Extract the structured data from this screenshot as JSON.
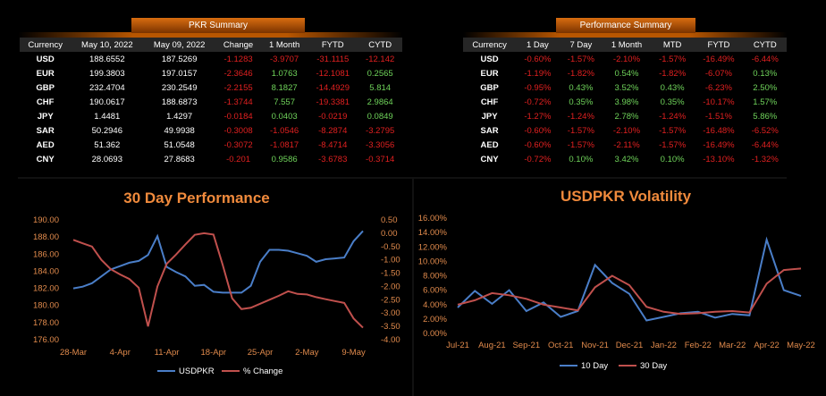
{
  "pkr_summary": {
    "title": "PKR Summary",
    "headers": [
      "Currency",
      "May 10, 2022",
      "May 09, 2022",
      "Change",
      "1 Month",
      "FYTD",
      "CYTD"
    ],
    "rows": [
      [
        "USD",
        "188.6552",
        "187.5269",
        "-1.1283",
        "-3.9707",
        "-31.1115",
        "-12.142"
      ],
      [
        "EUR",
        "199.3803",
        "197.0157",
        "-2.3646",
        "1.0763",
        "-12.1081",
        "0.2565"
      ],
      [
        "GBP",
        "232.4704",
        "230.2549",
        "-2.2155",
        "8.1827",
        "-14.4929",
        "5.814"
      ],
      [
        "CHF",
        "190.0617",
        "188.6873",
        "-1.3744",
        "7.557",
        "-19.3381",
        "2.9864"
      ],
      [
        "JPY",
        "1.4481",
        "1.4297",
        "-0.0184",
        "0.0403",
        "-0.0219",
        "0.0849"
      ],
      [
        "SAR",
        "50.2946",
        "49.9938",
        "-0.3008",
        "-1.0546",
        "-8.2874",
        "-3.2795"
      ],
      [
        "AED",
        "51.362",
        "51.0548",
        "-0.3072",
        "-1.0817",
        "-8.4714",
        "-3.3056"
      ],
      [
        "CNY",
        "28.0693",
        "27.8683",
        "-0.201",
        "0.9586",
        "-3.6783",
        "-0.3714"
      ]
    ]
  },
  "performance_summary": {
    "title": "Performance Summary",
    "headers": [
      "Currency",
      "1 Day",
      "7 Day",
      "1 Month",
      "MTD",
      "FYTD",
      "CYTD"
    ],
    "rows": [
      [
        "USD",
        "-0.60%",
        "-1.57%",
        "-2.10%",
        "-1.57%",
        "-16.49%",
        "-6.44%"
      ],
      [
        "EUR",
        "-1.19%",
        "-1.82%",
        "0.54%",
        "-1.82%",
        "-6.07%",
        "0.13%"
      ],
      [
        "GBP",
        "-0.95%",
        "0.43%",
        "3.52%",
        "0.43%",
        "-6.23%",
        "2.50%"
      ],
      [
        "CHF",
        "-0.72%",
        "0.35%",
        "3.98%",
        "0.35%",
        "-10.17%",
        "1.57%"
      ],
      [
        "JPY",
        "-1.27%",
        "-1.24%",
        "2.78%",
        "-1.24%",
        "-1.51%",
        "5.86%"
      ],
      [
        "SAR",
        "-0.60%",
        "-1.57%",
        "-2.10%",
        "-1.57%",
        "-16.48%",
        "-6.52%"
      ],
      [
        "AED",
        "-0.60%",
        "-1.57%",
        "-2.11%",
        "-1.57%",
        "-16.49%",
        "-6.44%"
      ],
      [
        "CNY",
        "-0.72%",
        "0.10%",
        "3.42%",
        "0.10%",
        "-13.10%",
        "-1.32%"
      ]
    ]
  },
  "colors": {
    "positive": "#6fd35a",
    "negative": "#e02020",
    "accent": "#f08a3c",
    "series_blue": "#4a7ec8",
    "series_red": "#c0504d"
  },
  "chart_data": [
    {
      "type": "line",
      "title": "30 Day Performance",
      "x_tick_labels": [
        "28-Mar",
        "4-Apr",
        "11-Apr",
        "18-Apr",
        "25-Apr",
        "2-May",
        "9-May"
      ],
      "x": [
        "28-Mar",
        "29-Mar",
        "30-Mar",
        "31-Mar",
        "1-Apr",
        "4-Apr",
        "5-Apr",
        "6-Apr",
        "7-Apr",
        "8-Apr",
        "11-Apr",
        "12-Apr",
        "13-Apr",
        "14-Apr",
        "15-Apr",
        "18-Apr",
        "19-Apr",
        "20-Apr",
        "21-Apr",
        "22-Apr",
        "25-Apr",
        "26-Apr",
        "27-Apr",
        "28-Apr",
        "29-Apr",
        "2-May",
        "3-May",
        "4-May",
        "5-May",
        "6-May",
        "9-May",
        "10-May"
      ],
      "y_left_ticks": [
        "176.00",
        "178.00",
        "180.00",
        "182.00",
        "184.00",
        "186.00",
        "188.00",
        "190.00"
      ],
      "y_right_ticks": [
        "-4.00",
        "-3.50",
        "-3.00",
        "-2.50",
        "-2.00",
        "-1.50",
        "-1.00",
        "-0.50",
        "0.00",
        "0.50"
      ],
      "ylim_left": [
        176,
        190
      ],
      "ylim_right": [
        -4.0,
        0.5
      ],
      "series": [
        {
          "name": "USDPKR",
          "axis": "left",
          "values": [
            182.0,
            182.2,
            182.6,
            183.4,
            184.2,
            184.6,
            185.0,
            185.2,
            185.9,
            188.1,
            184.5,
            183.9,
            183.4,
            182.3,
            182.4,
            181.6,
            181.5,
            181.5,
            181.5,
            182.3,
            185.1,
            186.5,
            186.5,
            186.4,
            186.1,
            185.8,
            185.1,
            185.4,
            185.5,
            185.6,
            187.5,
            188.7
          ]
        },
        {
          "name": "% Change",
          "axis": "right",
          "values": [
            -0.25,
            -0.38,
            -0.5,
            -1.0,
            -1.35,
            -1.55,
            -1.72,
            -2.05,
            -3.5,
            -2.0,
            -1.15,
            -0.8,
            -0.42,
            -0.06,
            0.0,
            -0.05,
            -1.2,
            -2.45,
            -2.85,
            -2.8,
            -2.65,
            -2.5,
            -2.35,
            -2.18,
            -2.28,
            -2.3,
            -2.4,
            -2.48,
            -2.55,
            -2.62,
            -3.2,
            -3.55
          ]
        }
      ],
      "legend_position": "bottom"
    },
    {
      "type": "line",
      "title": "USDPKR Volatility",
      "x_tick_labels": [
        "Jul-21",
        "Aug-21",
        "Sep-21",
        "Oct-21",
        "Nov-21",
        "Dec-21",
        "Jan-22",
        "Feb-22",
        "Mar-22",
        "Apr-22",
        "May-22"
      ],
      "y_ticks": [
        "0.00%",
        "2.00%",
        "4.00%",
        "6.00%",
        "8.00%",
        "10.00%",
        "12.00%",
        "14.00%",
        "16.00%"
      ],
      "ylim": [
        0,
        16
      ],
      "x": [
        "Jul-21",
        "Jul-21",
        "Aug-21",
        "Aug-21",
        "Sep-21",
        "Sep-21",
        "Oct-21",
        "Oct-21",
        "Nov-21",
        "Nov-21",
        "Dec-21",
        "Dec-21",
        "Jan-22",
        "Jan-22",
        "Feb-22",
        "Feb-22",
        "Mar-22",
        "Mar-22",
        "Apr-22",
        "Apr-22",
        "May-22"
      ],
      "series": [
        {
          "name": "10 Day",
          "values": [
            3.6,
            5.9,
            4.1,
            6.0,
            3.1,
            4.3,
            2.3,
            3.1,
            9.5,
            7.0,
            5.5,
            1.8,
            2.3,
            2.8,
            3.0,
            2.2,
            2.7,
            2.5,
            13.0,
            6.0,
            5.2
          ]
        },
        {
          "name": "30 Day",
          "values": [
            4.0,
            4.6,
            5.6,
            5.3,
            4.8,
            4.0,
            3.6,
            3.2,
            6.4,
            8.0,
            6.7,
            3.7,
            3.0,
            2.7,
            2.8,
            3.0,
            3.1,
            2.9,
            6.9,
            8.8,
            9.0
          ]
        }
      ],
      "legend_position": "bottom"
    }
  ]
}
